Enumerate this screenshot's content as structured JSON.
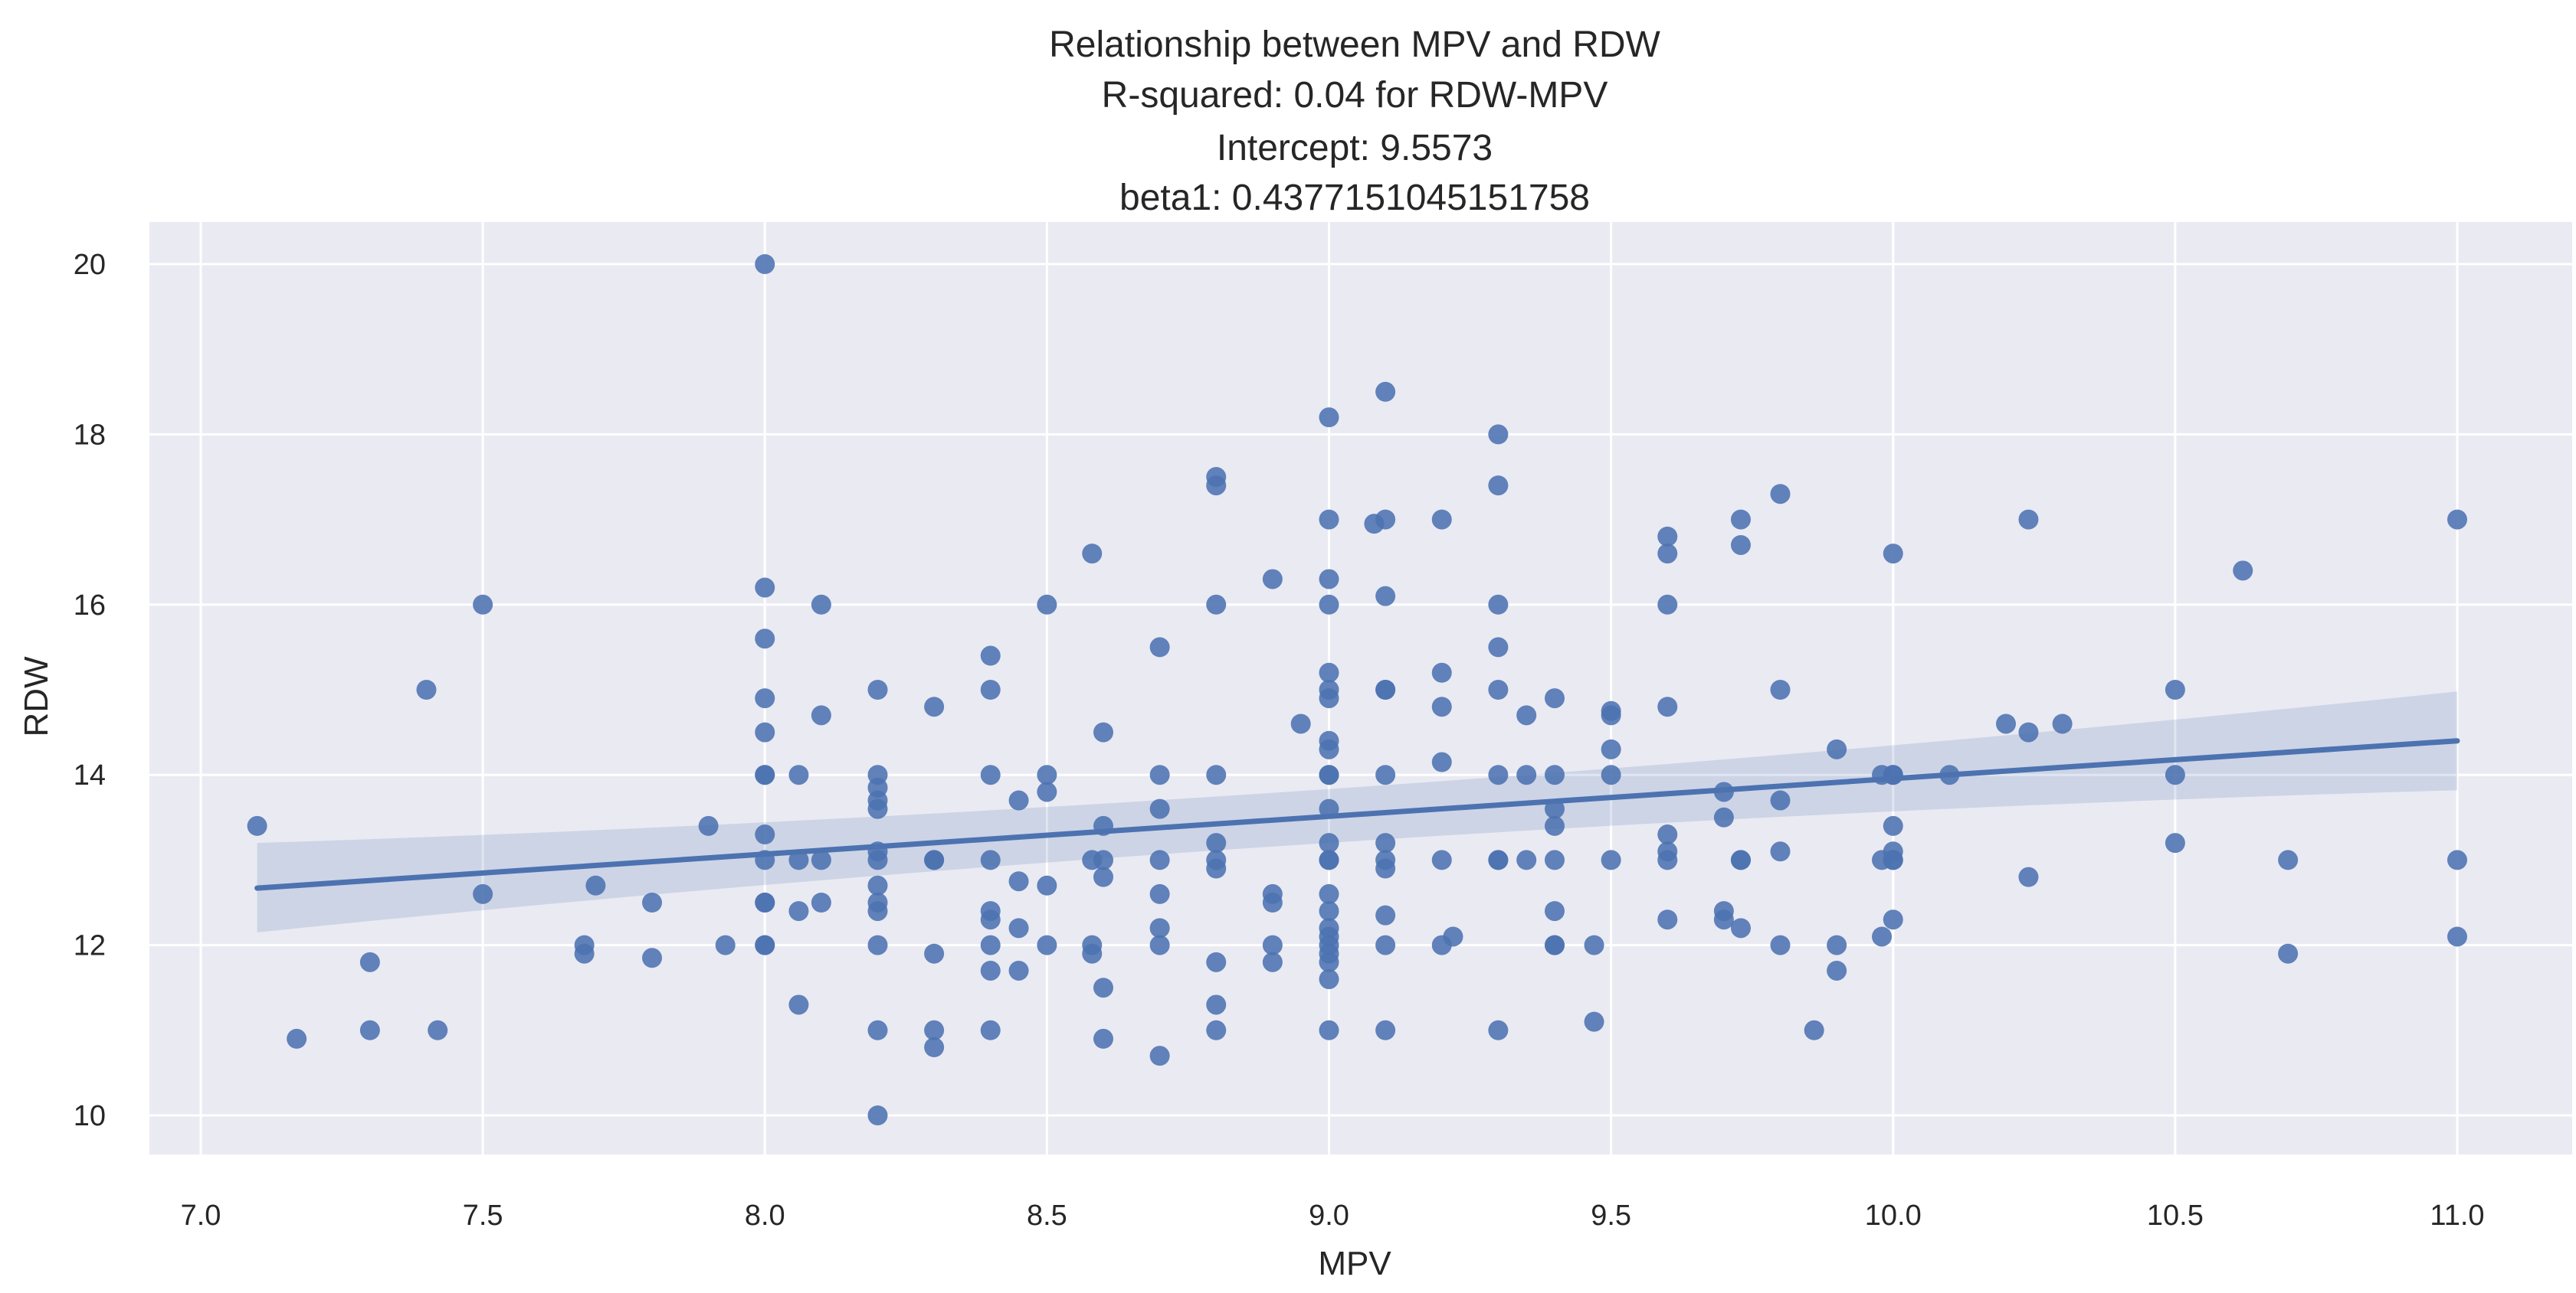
{
  "chart_data": {
    "type": "scatter",
    "title_lines": [
      "Relationship between MPV and RDW",
      "R-squared: 0.04 for RDW-MPV",
      "Intercept: 9.5573",
      "beta1: 0.4377151045151758"
    ],
    "xlabel": "MPV",
    "ylabel": "RDW",
    "xlim": [
      6.9,
      11.2
    ],
    "ylim": [
      9.5,
      20.5
    ],
    "xticks": [
      7.0,
      7.5,
      8.0,
      8.5,
      9.0,
      9.5,
      10.0,
      10.5,
      11.0
    ],
    "xtick_labels": [
      "7.0",
      "7.5",
      "8.0",
      "8.5",
      "9.0",
      "9.5",
      "10.0",
      "10.5",
      "11.0"
    ],
    "yticks": [
      10,
      12,
      14,
      16,
      18,
      20
    ],
    "ytick_labels": [
      "10",
      "12",
      "14",
      "16",
      "18",
      "20"
    ],
    "grid": true,
    "colors": {
      "points": "#4c72b0",
      "line": "#4c72b0",
      "band": "#4c72b0",
      "panel": "#eaeaf2",
      "grid": "#ffffff"
    },
    "regression": {
      "x_range": [
        7.1,
        11.0
      ],
      "y_at": [
        12.67,
        14.4
      ],
      "ci_low": [
        12.15,
        13.82
      ],
      "ci_high": [
        13.2,
        14.98
      ],
      "ci_mid_low": 13.42,
      "ci_mid_high": 13.62,
      "x_mid": 9.0
    },
    "points": [
      [
        7.1,
        13.4
      ],
      [
        7.17,
        10.9
      ],
      [
        7.3,
        11.8
      ],
      [
        7.3,
        11.0
      ],
      [
        7.4,
        15.0
      ],
      [
        7.42,
        11.0
      ],
      [
        7.5,
        16.0
      ],
      [
        7.5,
        12.6
      ],
      [
        7.68,
        12.0
      ],
      [
        7.68,
        11.9
      ],
      [
        7.7,
        12.7
      ],
      [
        7.8,
        11.85
      ],
      [
        7.8,
        12.5
      ],
      [
        7.9,
        13.4
      ],
      [
        7.93,
        12.0
      ],
      [
        8.0,
        20.0
      ],
      [
        8.0,
        16.2
      ],
      [
        8.0,
        15.6
      ],
      [
        8.0,
        14.9
      ],
      [
        8.0,
        14.5
      ],
      [
        8.0,
        14.0
      ],
      [
        8.0,
        14.0
      ],
      [
        8.0,
        13.3
      ],
      [
        8.0,
        13.0
      ],
      [
        8.0,
        12.5
      ],
      [
        8.0,
        12.5
      ],
      [
        8.0,
        12.0
      ],
      [
        8.0,
        12.0
      ],
      [
        8.06,
        11.3
      ],
      [
        8.06,
        14.0
      ],
      [
        8.06,
        13.0
      ],
      [
        8.06,
        12.4
      ],
      [
        8.1,
        16.0
      ],
      [
        8.1,
        14.7
      ],
      [
        8.1,
        13.0
      ],
      [
        8.1,
        12.5
      ],
      [
        8.2,
        15.0
      ],
      [
        8.2,
        14.0
      ],
      [
        8.2,
        13.85
      ],
      [
        8.2,
        13.7
      ],
      [
        8.2,
        13.6
      ],
      [
        8.2,
        13.1
      ],
      [
        8.2,
        13.0
      ],
      [
        8.2,
        12.7
      ],
      [
        8.2,
        12.5
      ],
      [
        8.2,
        12.4
      ],
      [
        8.2,
        12.0
      ],
      [
        8.2,
        11.0
      ],
      [
        8.2,
        10.0
      ],
      [
        8.3,
        14.8
      ],
      [
        8.3,
        13.0
      ],
      [
        8.3,
        13.0
      ],
      [
        8.3,
        11.9
      ],
      [
        8.3,
        11.0
      ],
      [
        8.3,
        10.8
      ],
      [
        8.4,
        15.4
      ],
      [
        8.4,
        15.0
      ],
      [
        8.4,
        14.0
      ],
      [
        8.4,
        13.0
      ],
      [
        8.4,
        12.4
      ],
      [
        8.4,
        12.3
      ],
      [
        8.4,
        12.0
      ],
      [
        8.4,
        11.7
      ],
      [
        8.4,
        11.0
      ],
      [
        8.45,
        13.7
      ],
      [
        8.45,
        12.75
      ],
      [
        8.45,
        12.2
      ],
      [
        8.45,
        11.7
      ],
      [
        8.5,
        16.0
      ],
      [
        8.5,
        14.0
      ],
      [
        8.5,
        13.8
      ],
      [
        8.5,
        12.7
      ],
      [
        8.5,
        12.0
      ],
      [
        8.58,
        16.6
      ],
      [
        8.58,
        13.0
      ],
      [
        8.58,
        12.0
      ],
      [
        8.58,
        11.9
      ],
      [
        8.6,
        14.5
      ],
      [
        8.6,
        13.4
      ],
      [
        8.6,
        13.0
      ],
      [
        8.6,
        12.8
      ],
      [
        8.6,
        11.5
      ],
      [
        8.6,
        10.9
      ],
      [
        8.7,
        15.5
      ],
      [
        8.7,
        14.0
      ],
      [
        8.7,
        13.6
      ],
      [
        8.7,
        13.0
      ],
      [
        8.7,
        12.6
      ],
      [
        8.7,
        12.2
      ],
      [
        8.7,
        12.0
      ],
      [
        8.7,
        10.7
      ],
      [
        8.8,
        17.5
      ],
      [
        8.8,
        17.4
      ],
      [
        8.8,
        16.0
      ],
      [
        8.8,
        14.0
      ],
      [
        8.8,
        13.2
      ],
      [
        8.8,
        13.0
      ],
      [
        8.8,
        12.9
      ],
      [
        8.8,
        11.8
      ],
      [
        8.8,
        11.3
      ],
      [
        8.8,
        11.0
      ],
      [
        8.9,
        16.3
      ],
      [
        8.9,
        12.6
      ],
      [
        8.9,
        12.5
      ],
      [
        8.9,
        12.0
      ],
      [
        8.9,
        11.8
      ],
      [
        8.95,
        14.6
      ],
      [
        9.0,
        18.2
      ],
      [
        9.0,
        17.0
      ],
      [
        9.0,
        16.3
      ],
      [
        9.0,
        16.0
      ],
      [
        9.0,
        15.2
      ],
      [
        9.0,
        15.0
      ],
      [
        9.0,
        14.9
      ],
      [
        9.0,
        14.4
      ],
      [
        9.0,
        14.3
      ],
      [
        9.0,
        14.0
      ],
      [
        9.0,
        14.0
      ],
      [
        9.0,
        13.6
      ],
      [
        9.0,
        13.2
      ],
      [
        9.0,
        13.0
      ],
      [
        9.0,
        13.0
      ],
      [
        9.0,
        12.6
      ],
      [
        9.0,
        12.4
      ],
      [
        9.0,
        12.2
      ],
      [
        9.0,
        12.1
      ],
      [
        9.0,
        12.0
      ],
      [
        9.0,
        11.9
      ],
      [
        9.0,
        11.8
      ],
      [
        9.0,
        11.6
      ],
      [
        9.0,
        11.0
      ],
      [
        9.08,
        16.95
      ],
      [
        9.1,
        18.5
      ],
      [
        9.1,
        17.0
      ],
      [
        9.1,
        16.1
      ],
      [
        9.1,
        15.0
      ],
      [
        9.1,
        15.0
      ],
      [
        9.1,
        14.0
      ],
      [
        9.1,
        13.2
      ],
      [
        9.1,
        13.0
      ],
      [
        9.1,
        12.9
      ],
      [
        9.1,
        12.35
      ],
      [
        9.1,
        12.0
      ],
      [
        9.1,
        11.0
      ],
      [
        9.2,
        17.0
      ],
      [
        9.2,
        15.2
      ],
      [
        9.2,
        14.8
      ],
      [
        9.2,
        14.15
      ],
      [
        9.2,
        13.0
      ],
      [
        9.2,
        12.0
      ],
      [
        9.22,
        12.1
      ],
      [
        9.3,
        18.0
      ],
      [
        9.3,
        17.4
      ],
      [
        9.3,
        16.0
      ],
      [
        9.3,
        15.5
      ],
      [
        9.3,
        15.0
      ],
      [
        9.3,
        14.0
      ],
      [
        9.3,
        13.0
      ],
      [
        9.3,
        13.0
      ],
      [
        9.3,
        11.0
      ],
      [
        9.35,
        14.7
      ],
      [
        9.35,
        14.0
      ],
      [
        9.35,
        13.0
      ],
      [
        9.4,
        14.9
      ],
      [
        9.4,
        14.0
      ],
      [
        9.4,
        13.6
      ],
      [
        9.4,
        13.4
      ],
      [
        9.4,
        13.0
      ],
      [
        9.4,
        12.4
      ],
      [
        9.4,
        12.0
      ],
      [
        9.4,
        12.0
      ],
      [
        9.47,
        12.0
      ],
      [
        9.47,
        11.1
      ],
      [
        9.5,
        14.75
      ],
      [
        9.5,
        14.7
      ],
      [
        9.5,
        14.3
      ],
      [
        9.5,
        14.0
      ],
      [
        9.5,
        13.0
      ],
      [
        9.6,
        16.8
      ],
      [
        9.6,
        16.6
      ],
      [
        9.6,
        16.0
      ],
      [
        9.6,
        14.8
      ],
      [
        9.6,
        13.3
      ],
      [
        9.6,
        13.1
      ],
      [
        9.6,
        13.0
      ],
      [
        9.6,
        12.3
      ],
      [
        9.7,
        13.8
      ],
      [
        9.7,
        13.5
      ],
      [
        9.7,
        12.4
      ],
      [
        9.7,
        12.3
      ],
      [
        9.73,
        17.0
      ],
      [
        9.73,
        16.7
      ],
      [
        9.73,
        13.0
      ],
      [
        9.73,
        13.0
      ],
      [
        9.73,
        12.2
      ],
      [
        9.8,
        17.3
      ],
      [
        9.8,
        15.0
      ],
      [
        9.8,
        13.7
      ],
      [
        9.8,
        13.1
      ],
      [
        9.8,
        12.0
      ],
      [
        9.86,
        11.0
      ],
      [
        9.9,
        14.3
      ],
      [
        9.9,
        12.0
      ],
      [
        9.9,
        11.7
      ],
      [
        9.98,
        14.0
      ],
      [
        9.98,
        13.0
      ],
      [
        9.98,
        12.1
      ],
      [
        10.0,
        16.6
      ],
      [
        10.0,
        14.0
      ],
      [
        10.0,
        14.0
      ],
      [
        10.0,
        13.4
      ],
      [
        10.0,
        13.1
      ],
      [
        10.0,
        13.0
      ],
      [
        10.0,
        13.0
      ],
      [
        10.0,
        12.3
      ],
      [
        10.1,
        14.0
      ],
      [
        10.2,
        14.6
      ],
      [
        10.24,
        17.0
      ],
      [
        10.24,
        14.5
      ],
      [
        10.24,
        12.8
      ],
      [
        10.3,
        14.6
      ],
      [
        10.5,
        15.0
      ],
      [
        10.5,
        14.0
      ],
      [
        10.5,
        13.2
      ],
      [
        10.62,
        16.4
      ],
      [
        10.7,
        13.0
      ],
      [
        10.7,
        11.9
      ],
      [
        11.0,
        17.0
      ],
      [
        11.0,
        13.0
      ],
      [
        11.0,
        12.1
      ]
    ]
  }
}
